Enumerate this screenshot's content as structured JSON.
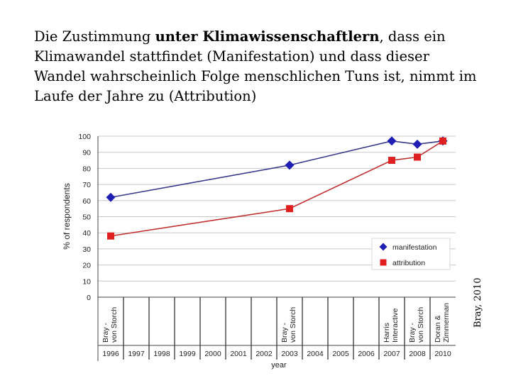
{
  "title": {
    "part1": "Die Zustimmung ",
    "bold": "unter Klimawissenschaftlern",
    "part2": ", dass ein Klimawandel stattfindet (Manifestation) und dass dieser Wandel wahrscheinlich Folge menschlichen Tuns ist, nimmt im Laufe der Jahre zu (Attribution)"
  },
  "source_label": "Bray, 2010",
  "chart_data": {
    "type": "line",
    "ylabel": "% of respondents",
    "xlabel": "year",
    "ylim": [
      0,
      100
    ],
    "yticks": [
      0,
      10,
      20,
      30,
      40,
      50,
      60,
      70,
      80,
      90,
      100
    ],
    "years": [
      "1996",
      "1997",
      "1998",
      "1999",
      "2000",
      "2001",
      "2002",
      "2003",
      "2004",
      "2005",
      "2006",
      "2007",
      "2008",
      "2010"
    ],
    "study_labels": [
      {
        "year": "1996",
        "lines": [
          "Bray -",
          "von Storch"
        ]
      },
      {
        "year": "2003",
        "lines": [
          "Bray -",
          "von Storch"
        ]
      },
      {
        "year": "2007",
        "lines": [
          "Harris",
          "Interactive"
        ]
      },
      {
        "year": "2008",
        "lines": [
          "Bray -",
          "von Storch"
        ]
      },
      {
        "year": "2010",
        "lines": [
          "Doran &",
          "Zimmerman"
        ]
      }
    ],
    "series": [
      {
        "name": "manifestation",
        "color": "#1f1fb4",
        "line_color": "#3a3a8c",
        "marker": "diamond",
        "points": [
          {
            "x": "1996",
            "y": 62
          },
          {
            "x": "2003",
            "y": 82
          },
          {
            "x": "2007",
            "y": 97
          },
          {
            "x": "2008",
            "y": 95
          },
          {
            "x": "2010",
            "y": 97
          }
        ]
      },
      {
        "name": "attribution",
        "color": "#e02020",
        "line_color": "#c03030",
        "marker": "square",
        "points": [
          {
            "x": "1996",
            "y": 38
          },
          {
            "x": "2003",
            "y": 55
          },
          {
            "x": "2007",
            "y": 85
          },
          {
            "x": "2008",
            "y": 87
          },
          {
            "x": "2010",
            "y": 97
          }
        ]
      }
    ],
    "legend_position": "bottom-right"
  }
}
